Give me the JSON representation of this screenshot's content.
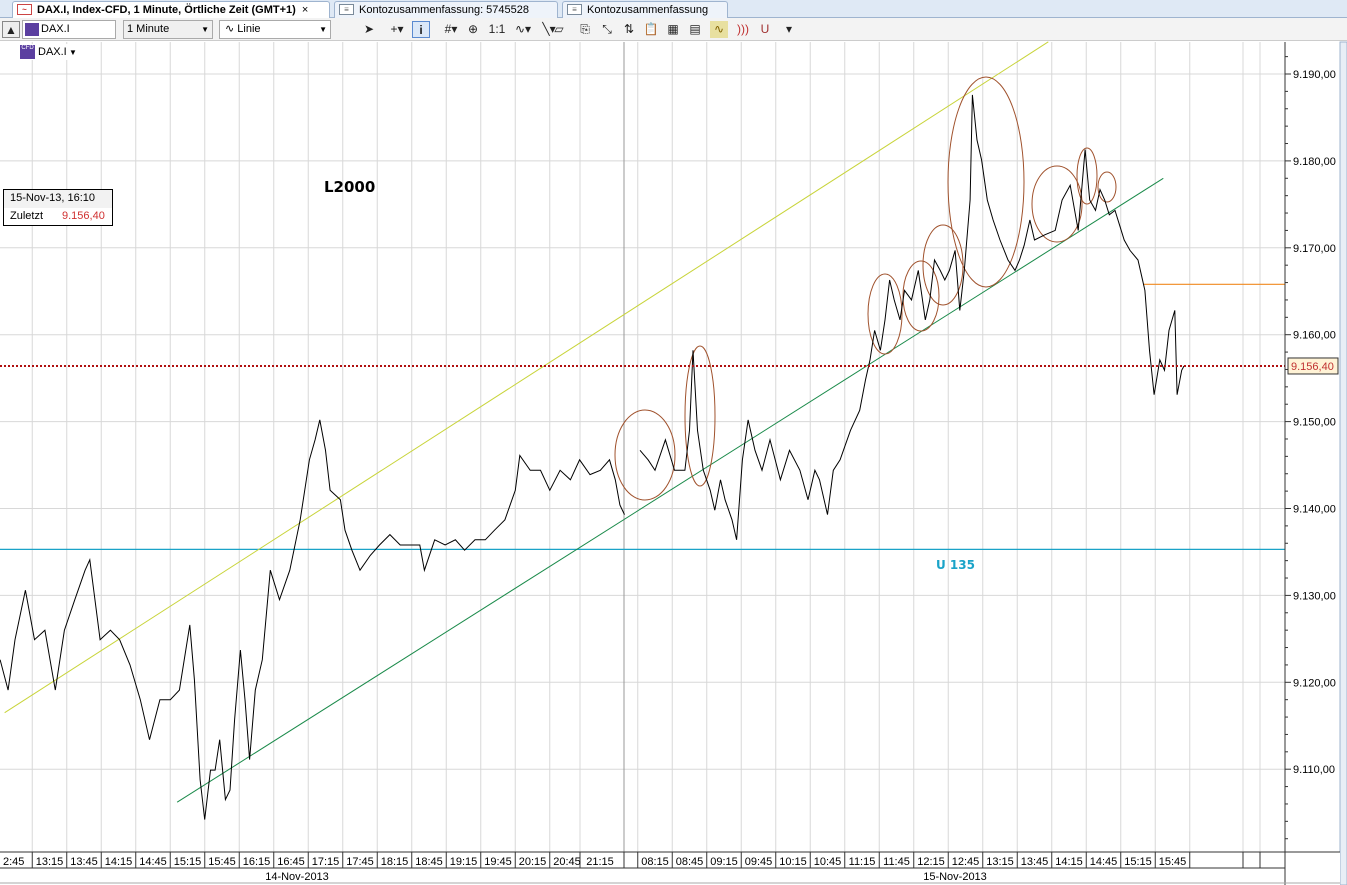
{
  "tabs": [
    {
      "label": "DAX.I, Index-CFD, 1 Minute, Örtliche Zeit (GMT+1)",
      "active": true,
      "icon": "chart-icon",
      "close": "×"
    },
    {
      "label": "Kontozusammenfassung: 5745528",
      "active": false,
      "icon": "table-icon"
    },
    {
      "label": "Kontozusammenfassung",
      "active": false,
      "icon": "table-icon"
    }
  ],
  "toolbar": {
    "symbol": "DAX.I",
    "interval": "1 Minute",
    "chart_type": "Linie",
    "icons": [
      "collapse-up-icon",
      "cursor-icon",
      "crosshair-icon",
      "info-icon",
      "grid-icon",
      "zoom-icon",
      "one-to-one-icon",
      "indicator-icon",
      "line-draw-icon",
      "eraser-icon",
      "template-icon",
      "fibonacci-icon",
      "compare-icon",
      "paste-icon",
      "chart-style-icon",
      "export-icon",
      "studies-icon",
      "sound-icon",
      "magnet-icon",
      "more-icon"
    ]
  },
  "sub_symbol": "DAX.I",
  "legend": {
    "datetime": "15-Nov-13, 16:10",
    "label": "Zuletzt",
    "value": "9.156,40"
  },
  "annotations": {
    "text1": "L2000",
    "text2": "U 135"
  },
  "colors": {
    "price_line": "#000000",
    "last_price": "#b01010",
    "support": "#1aa3c8",
    "resistance": "#f08a20",
    "upper_channel": "#c8d43a",
    "lower_channel": "#1a8a4a",
    "ellipse": "#a0522d"
  },
  "chart_data": {
    "type": "line",
    "ylim": [
      9100.5,
      9193.7
    ],
    "grid": true,
    "y_ticks": [
      {
        "v": 9190,
        "label": "9.190,00"
      },
      {
        "v": 9180,
        "label": "9.180,00"
      },
      {
        "v": 9170,
        "label": "9.170,00"
      },
      {
        "v": 9160,
        "label": "9.160,00"
      },
      {
        "v": 9150,
        "label": "9.150,00"
      },
      {
        "v": 9140,
        "label": "9.140,00"
      },
      {
        "v": 9130,
        "label": "9.130,00"
      },
      {
        "v": 9120,
        "label": "9.120,00"
      },
      {
        "v": 9110,
        "label": "9.110,00"
      }
    ],
    "x_ticks_day1": [
      "2:45",
      "13:15",
      "13:45",
      "14:15",
      "14:45",
      "15:15",
      "15:45",
      "16:15",
      "16:45",
      "17:15",
      "17:45",
      "18:15",
      "18:45",
      "19:15",
      "19:45",
      "20:15",
      "20:45",
      "21:15"
    ],
    "x_ticks_day2": [
      "08:15",
      "08:45",
      "09:15",
      "09:45",
      "10:15",
      "10:45",
      "11:15",
      "11:45",
      "12:15",
      "12:45",
      "13:15",
      "13:45",
      "14:15",
      "14:45",
      "15:15",
      "15:45"
    ],
    "dates": [
      "14-Nov-2013",
      "15-Nov-2013"
    ],
    "last_price": {
      "v": 9156.4,
      "label": "9.156,40"
    },
    "levels": [
      {
        "v": 9135.3,
        "color": "support",
        "from_day": 1,
        "to_end": true
      },
      {
        "v": 9165.8,
        "color": "resistance",
        "from": [
          "15-Nov-2013",
          "15:20"
        ]
      }
    ],
    "trendlines": [
      {
        "color": "upper_channel",
        "from": [
          "14-Nov-2013",
          "12:36",
          9116.5
        ],
        "to": [
          "15-Nov-2013",
          "13:57",
          9193.7
        ]
      },
      {
        "color": "lower_channel",
        "from": [
          "14-Nov-2013",
          "15:06",
          9106.2
        ],
        "to": [
          "15-Nov-2013",
          "15:37",
          9178.0
        ]
      }
    ],
    "series": [
      {
        "date": "14-Nov-2013",
        "points": [
          [
            "12:32",
            9122.6
          ],
          [
            "12:39",
            9119.1
          ],
          [
            "12:45",
            9124.9
          ],
          [
            "12:54",
            9130.6
          ],
          [
            "13:02",
            9124.9
          ],
          [
            "13:11",
            9126.0
          ],
          [
            "13:20",
            9119.1
          ],
          [
            "13:28",
            9126.0
          ],
          [
            "13:37",
            9129.5
          ],
          [
            "13:46",
            9132.9
          ],
          [
            "13:50",
            9134.1
          ],
          [
            "13:59",
            9124.9
          ],
          [
            "14:08",
            9126.0
          ],
          [
            "14:16",
            9124.9
          ],
          [
            "14:25",
            9122.0
          ],
          [
            "14:34",
            9118.0
          ],
          [
            "14:42",
            9113.4
          ],
          [
            "14:51",
            9118.0
          ],
          [
            "15:00",
            9118.0
          ],
          [
            "15:08",
            9119.1
          ],
          [
            "15:17",
            9126.6
          ],
          [
            "15:21",
            9120.3
          ],
          [
            "15:26",
            9108.8
          ],
          [
            "15:30",
            9104.2
          ],
          [
            "15:35",
            9109.9
          ],
          [
            "15:39",
            9109.9
          ],
          [
            "15:43",
            9113.4
          ],
          [
            "15:48",
            9106.5
          ],
          [
            "15:52",
            9107.6
          ],
          [
            "15:56",
            9115.7
          ],
          [
            "16:01",
            9123.7
          ],
          [
            "16:05",
            9118.0
          ],
          [
            "16:09",
            9111.1
          ],
          [
            "16:14",
            9119.1
          ],
          [
            "16:20",
            9122.6
          ],
          [
            "16:27",
            9132.9
          ],
          [
            "16:35",
            9129.5
          ],
          [
            "16:44",
            9132.9
          ],
          [
            "16:53",
            9138.7
          ],
          [
            "17:01",
            9145.6
          ],
          [
            "17:06",
            9147.9
          ],
          [
            "17:10",
            9150.2
          ],
          [
            "17:15",
            9146.7
          ],
          [
            "17:19",
            9142.1
          ],
          [
            "17:28",
            9141.0
          ],
          [
            "17:32",
            9137.5
          ],
          [
            "17:38",
            9135.2
          ],
          [
            "17:45",
            9132.9
          ],
          [
            "17:54",
            9134.6
          ],
          [
            "18:02",
            9135.8
          ],
          [
            "18:11",
            9137.0
          ],
          [
            "18:20",
            9135.8
          ],
          [
            "18:28",
            9135.8
          ],
          [
            "18:37",
            9135.8
          ],
          [
            "18:41",
            9132.9
          ],
          [
            "18:50",
            9136.4
          ],
          [
            "18:59",
            9135.8
          ],
          [
            "19:08",
            9136.4
          ],
          [
            "19:16",
            9135.2
          ],
          [
            "19:25",
            9136.4
          ],
          [
            "19:34",
            9136.4
          ],
          [
            "19:42",
            9137.5
          ],
          [
            "19:51",
            9138.7
          ],
          [
            "20:00",
            9142.1
          ],
          [
            "20:04",
            9146.1
          ],
          [
            "20:13",
            9144.4
          ],
          [
            "20:22",
            9144.4
          ],
          [
            "20:30",
            9142.1
          ],
          [
            "20:39",
            9144.4
          ],
          [
            "20:48",
            9143.3
          ],
          [
            "20:56",
            9145.6
          ],
          [
            "21:05",
            9143.9
          ],
          [
            "21:14",
            9144.4
          ],
          [
            "21:22",
            9145.6
          ],
          [
            "21:27",
            9143.3
          ],
          [
            "21:31",
            9140.4
          ],
          [
            "21:35",
            9139.3
          ]
        ]
      },
      {
        "date": "15-Nov-2013",
        "points": [
          [
            "08:02",
            9146.7
          ],
          [
            "08:09",
            9145.6
          ],
          [
            "08:15",
            9144.4
          ],
          [
            "08:24",
            9147.9
          ],
          [
            "08:32",
            9144.4
          ],
          [
            "08:41",
            9144.4
          ],
          [
            "08:45",
            9149.0
          ],
          [
            "08:48",
            9158.2
          ],
          [
            "08:52",
            9149.0
          ],
          [
            "08:57",
            9144.4
          ],
          [
            "09:03",
            9142.1
          ],
          [
            "09:07",
            9139.8
          ],
          [
            "09:12",
            9143.3
          ],
          [
            "09:16",
            9141.0
          ],
          [
            "09:22",
            9138.7
          ],
          [
            "09:26",
            9136.4
          ],
          [
            "09:31",
            9145.6
          ],
          [
            "09:36",
            9150.2
          ],
          [
            "09:42",
            9146.7
          ],
          [
            "09:48",
            9144.4
          ],
          [
            "09:55",
            9147.9
          ],
          [
            "10:04",
            9143.3
          ],
          [
            "10:12",
            9146.7
          ],
          [
            "10:21",
            9144.4
          ],
          [
            "10:28",
            9141.0
          ],
          [
            "10:34",
            9144.4
          ],
          [
            "10:38",
            9143.3
          ],
          [
            "10:45",
            9139.3
          ],
          [
            "10:50",
            9144.4
          ],
          [
            "10:56",
            9145.6
          ],
          [
            "11:05",
            9149.0
          ],
          [
            "11:13",
            9151.3
          ],
          [
            "11:18",
            9154.8
          ],
          [
            "11:22",
            9157.1
          ],
          [
            "11:26",
            9160.5
          ],
          [
            "11:31",
            9158.2
          ],
          [
            "11:35",
            9161.7
          ],
          [
            "11:39",
            9166.3
          ],
          [
            "11:43",
            9164.0
          ],
          [
            "11:48",
            9161.7
          ],
          [
            "11:52",
            9165.1
          ],
          [
            "11:58",
            9164.0
          ],
          [
            "12:04",
            9167.4
          ],
          [
            "12:10",
            9161.7
          ],
          [
            "12:14",
            9164.0
          ],
          [
            "12:18",
            9168.6
          ],
          [
            "12:23",
            9167.4
          ],
          [
            "12:27",
            9166.3
          ],
          [
            "12:31",
            9167.4
          ],
          [
            "12:36",
            9169.7
          ],
          [
            "12:40",
            9162.8
          ],
          [
            "12:44",
            9167.4
          ],
          [
            "12:49",
            9175.5
          ],
          [
            "12:51",
            9187.6
          ],
          [
            "12:55",
            9182.4
          ],
          [
            "12:59",
            9180.1
          ],
          [
            "13:04",
            9175.5
          ],
          [
            "13:09",
            9173.2
          ],
          [
            "13:15",
            9170.9
          ],
          [
            "13:22",
            9168.6
          ],
          [
            "13:28",
            9167.4
          ],
          [
            "13:32",
            9168.6
          ],
          [
            "13:36",
            9170.3
          ],
          [
            "13:41",
            9173.2
          ],
          [
            "13:45",
            9170.9
          ],
          [
            "13:54",
            9171.5
          ],
          [
            "14:03",
            9172.0
          ],
          [
            "14:09",
            9175.5
          ],
          [
            "14:16",
            9177.2
          ],
          [
            "14:23",
            9172.0
          ],
          [
            "14:29",
            9181.3
          ],
          [
            "14:33",
            9175.5
          ],
          [
            "14:38",
            9174.3
          ],
          [
            "14:42",
            9176.7
          ],
          [
            "14:46",
            9175.5
          ],
          [
            "14:50",
            9173.8
          ],
          [
            "14:55",
            9174.3
          ],
          [
            "14:59",
            9172.6
          ],
          [
            "15:03",
            9170.9
          ],
          [
            "15:08",
            9169.7
          ],
          [
            "15:15",
            9168.6
          ],
          [
            "15:21",
            9165.1
          ],
          [
            "15:25",
            9158.2
          ],
          [
            "15:29",
            9153.1
          ],
          [
            "15:34",
            9157.1
          ],
          [
            "15:38",
            9155.9
          ],
          [
            "15:42",
            9160.5
          ],
          [
            "15:47",
            9162.8
          ],
          [
            "15:49",
            9153.1
          ],
          [
            "15:53",
            9155.9
          ],
          [
            "15:55",
            9156.4
          ]
        ]
      }
    ]
  }
}
